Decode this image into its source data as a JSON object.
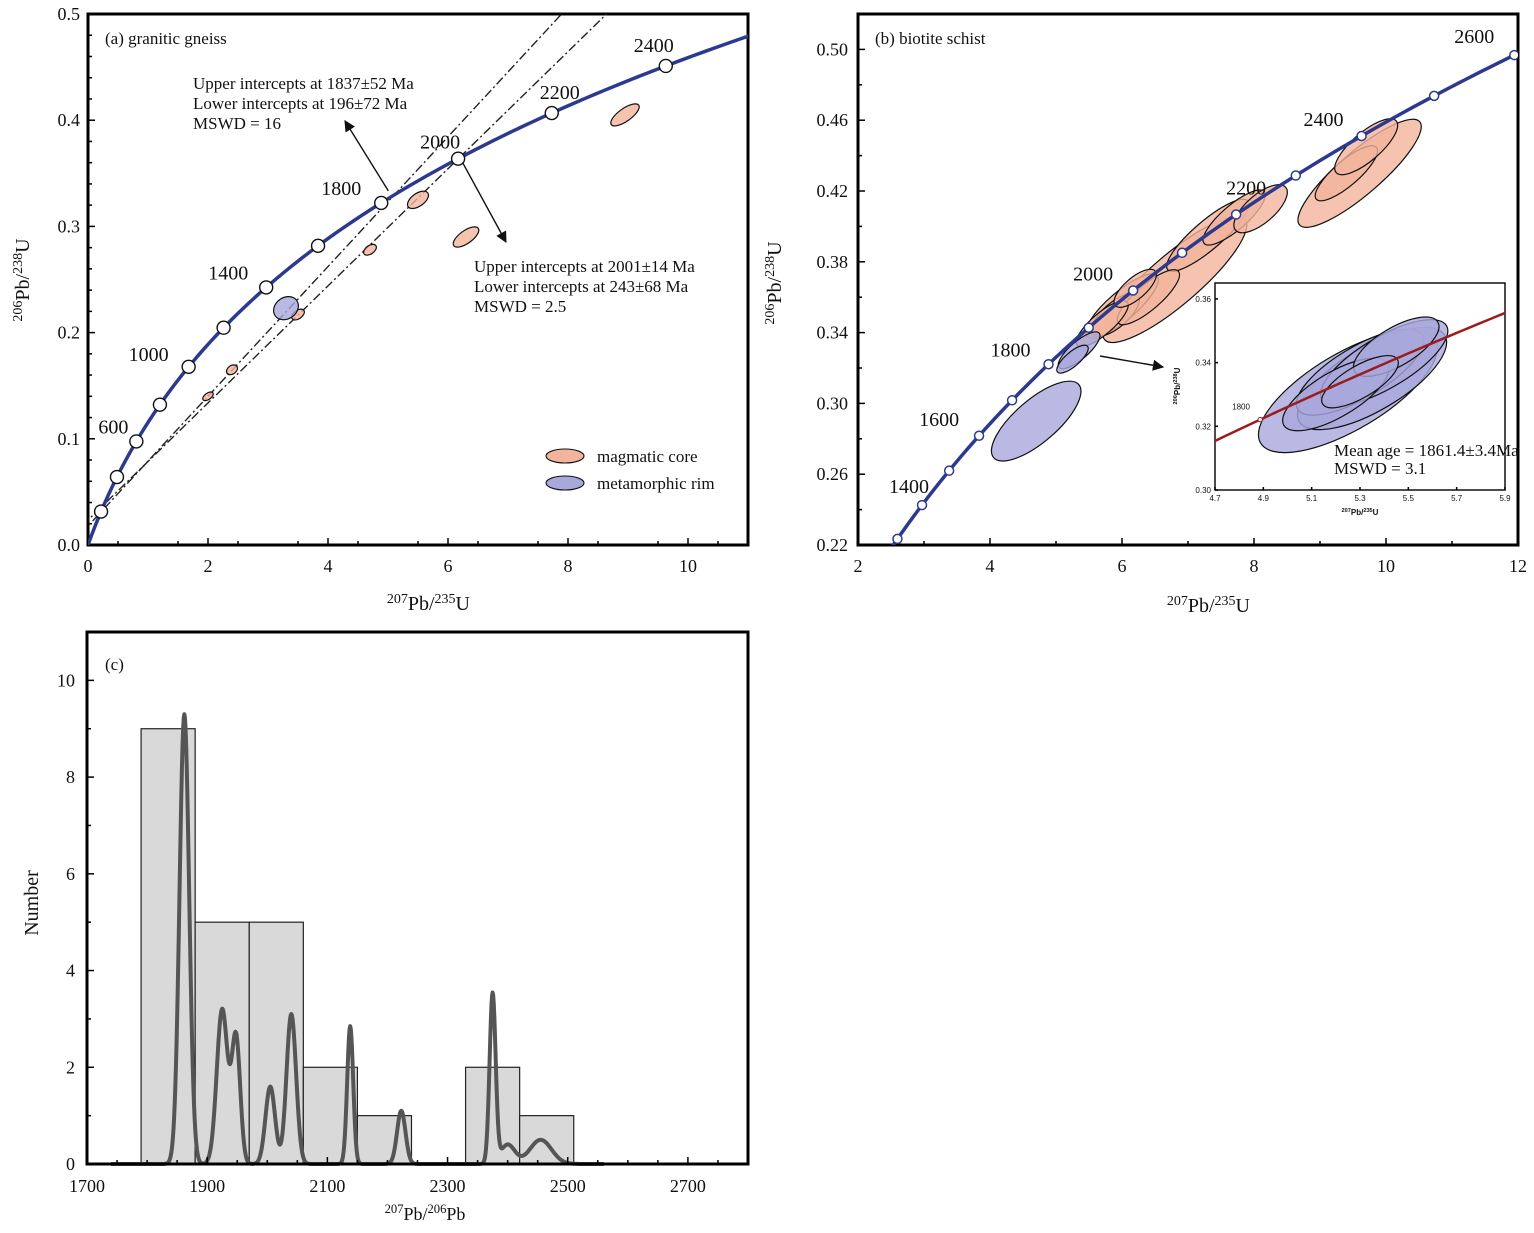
{
  "colors": {
    "concordia": "#2b3a8f",
    "core_fill": "#f2b49c",
    "rim_fill": "#a8a8dc",
    "inset_curve": "#9b1c1c",
    "hist_fill": "#d9d9d9",
    "kde": "#555555"
  },
  "chart_data": [
    {
      "id": "a",
      "type": "scatter",
      "title": "(a) granitic gneiss",
      "xlabel": {
        "sup1": "207",
        "main1": "Pb/",
        "sup2": "235",
        "main2": "U"
      },
      "ylabel": {
        "sup1": "206",
        "main1": "Pb/",
        "sup2": "238",
        "main2": "U"
      },
      "xlim": [
        0,
        11
      ],
      "ylim": [
        0,
        0.5
      ],
      "xticks": [
        0,
        2,
        4,
        6,
        8,
        10
      ],
      "xtick_labels": [
        "0",
        "2",
        "4",
        "6",
        "8",
        "10"
      ],
      "yticks": [
        0,
        0.1,
        0.2,
        0.3,
        0.4,
        0.5
      ],
      "ytick_labels": [
        "0.0",
        "0.1",
        "0.2",
        "0.3",
        "0.4",
        "0.5"
      ],
      "concordia_ages": [
        200,
        400,
        600,
        800,
        1000,
        1200,
        1400,
        1600,
        1800,
        2000,
        2200,
        2400
      ],
      "concordia_labels": [
        {
          "age": 600,
          "text": "600"
        },
        {
          "age": 1000,
          "text": "1000"
        },
        {
          "age": 1400,
          "text": "1400"
        },
        {
          "age": 1800,
          "text": "1800"
        },
        {
          "age": 2000,
          "text": "2000"
        },
        {
          "age": 2200,
          "text": "2200"
        },
        {
          "age": 2400,
          "text": "2400"
        }
      ],
      "discordia": [
        {
          "upper_ma": 1837,
          "lower_ma": 196
        },
        {
          "upper_ma": 2001,
          "lower_ma": 243
        }
      ],
      "annotations": [
        {
          "lines": [
            "Upper intercepts at 1837±52 Ma",
            "Lower intercepts at 196±72 Ma",
            "MSWD = 16"
          ]
        },
        {
          "lines": [
            "Upper intercepts at 2001±14 Ma",
            "Lower intercepts at 243±68 Ma",
            "MSWD = 2.5"
          ]
        }
      ],
      "ellipses_core": [
        {
          "x": 8.95,
          "y": 0.405,
          "rx": 0.28,
          "ry": 0.006
        },
        {
          "x": 6.3,
          "y": 0.29,
          "rx": 0.25,
          "ry": 0.006
        },
        {
          "x": 5.5,
          "y": 0.325,
          "rx": 0.2,
          "ry": 0.006
        },
        {
          "x": 4.7,
          "y": 0.278,
          "rx": 0.12,
          "ry": 0.004
        },
        {
          "x": 3.5,
          "y": 0.217,
          "rx": 0.12,
          "ry": 0.004
        },
        {
          "x": 2.4,
          "y": 0.165,
          "rx": 0.1,
          "ry": 0.004
        },
        {
          "x": 2.0,
          "y": 0.14,
          "rx": 0.1,
          "ry": 0.003
        }
      ],
      "ellipses_rim": [
        {
          "x": 3.3,
          "y": 0.223,
          "rx": 0.22,
          "ry": 0.01
        }
      ],
      "legend": [
        {
          "label": "magmatic core",
          "kind": "core"
        },
        {
          "label": "metamorphic rim",
          "kind": "rim"
        }
      ]
    },
    {
      "id": "b",
      "type": "scatter",
      "title": "(b) biotite schist",
      "xlabel": {
        "sup1": "207",
        "main1": "Pb/",
        "sup2": "235",
        "main2": "U"
      },
      "ylabel": {
        "sup1": "206",
        "main1": "Pb/",
        "sup2": "238",
        "main2": "U"
      },
      "xlim": [
        2,
        12
      ],
      "ylim": [
        0.22,
        0.52
      ],
      "xticks": [
        2,
        4,
        6,
        8,
        10,
        12
      ],
      "xtick_labels": [
        "2",
        "4",
        "6",
        "8",
        "10",
        "12"
      ],
      "yticks": [
        0.22,
        0.26,
        0.3,
        0.34,
        0.38,
        0.42,
        0.46,
        0.5
      ],
      "ytick_labels": [
        "0.22",
        "0.26",
        "0.30",
        "0.34",
        "0.38",
        "0.42",
        "0.46",
        "0.50"
      ],
      "concordia_ages": [
        1300,
        1400,
        1500,
        1600,
        1700,
        1800,
        1900,
        2000,
        2100,
        2200,
        2300,
        2400,
        2500,
        2600
      ],
      "concordia_labels": [
        {
          "age": 1400,
          "text": "1400"
        },
        {
          "age": 1600,
          "text": "1600"
        },
        {
          "age": 1800,
          "text": "1800"
        },
        {
          "age": 2000,
          "text": "2000"
        },
        {
          "age": 2200,
          "text": "2200"
        },
        {
          "age": 2400,
          "text": "2400"
        },
        {
          "age": 2600,
          "text": "2600"
        }
      ],
      "ellipses_core": [
        {
          "x": 9.6,
          "y": 0.43,
          "rx": 1.2,
          "ry": 0.012
        },
        {
          "x": 9.4,
          "y": 0.43,
          "rx": 0.6,
          "ry": 0.007
        },
        {
          "x": 9.7,
          "y": 0.445,
          "rx": 0.6,
          "ry": 0.008
        },
        {
          "x": 6.8,
          "y": 0.37,
          "rx": 1.4,
          "ry": 0.014
        },
        {
          "x": 7.3,
          "y": 0.395,
          "rx": 0.8,
          "ry": 0.008
        },
        {
          "x": 7.7,
          "y": 0.405,
          "rx": 0.6,
          "ry": 0.007
        },
        {
          "x": 8.1,
          "y": 0.41,
          "rx": 0.5,
          "ry": 0.008
        },
        {
          "x": 6.0,
          "y": 0.355,
          "rx": 0.7,
          "ry": 0.008
        },
        {
          "x": 5.9,
          "y": 0.35,
          "rx": 0.45,
          "ry": 0.007
        },
        {
          "x": 6.4,
          "y": 0.36,
          "rx": 0.6,
          "ry": 0.007
        },
        {
          "x": 5.7,
          "y": 0.345,
          "rx": 0.5,
          "ry": 0.006
        },
        {
          "x": 6.2,
          "y": 0.365,
          "rx": 0.4,
          "ry": 0.006
        }
      ],
      "ellipses_rim": [
        {
          "x": 4.7,
          "y": 0.29,
          "rx": 0.85,
          "ry": 0.012
        },
        {
          "x": 5.35,
          "y": 0.33,
          "rx": 0.4,
          "ry": 0.005
        },
        {
          "x": 5.25,
          "y": 0.325,
          "rx": 0.3,
          "ry": 0.004
        }
      ],
      "inset": {
        "xlabel": {
          "sup1": "207",
          "main1": "Pb/",
          "sup2": "235",
          "main2": "U"
        },
        "ylabel": {
          "sup1": "206",
          "main1": "Pb/",
          "sup2": "238",
          "main2": "U"
        },
        "xlim": [
          4.7,
          5.9
        ],
        "ylim": [
          0.3,
          0.365
        ],
        "xticks": [
          4.7,
          4.9,
          5.1,
          5.3,
          5.5,
          5.7,
          5.9
        ],
        "xtick_labels": [
          "4.7",
          "4.9",
          "5.1",
          "5.3",
          "5.5",
          "5.7",
          "5.9"
        ],
        "yticks": [
          0.3,
          0.32,
          0.34,
          0.36
        ],
        "ytick_labels": [
          "0.30",
          "0.32",
          "0.34",
          "0.36"
        ],
        "concordia_label": "1800",
        "mean_age": "Mean age = 1861.4±3.4Ma",
        "mswd": "MSWD = 3.1",
        "ellipses_rim": [
          {
            "x": 5.25,
            "y": 0.331,
            "rx": 0.42,
            "ry": 0.012
          },
          {
            "x": 5.35,
            "y": 0.335,
            "rx": 0.35,
            "ry": 0.01
          },
          {
            "x": 5.3,
            "y": 0.337,
            "rx": 0.3,
            "ry": 0.008
          },
          {
            "x": 5.4,
            "y": 0.34,
            "rx": 0.3,
            "ry": 0.008
          },
          {
            "x": 5.2,
            "y": 0.33,
            "rx": 0.25,
            "ry": 0.007
          },
          {
            "x": 5.45,
            "y": 0.345,
            "rx": 0.2,
            "ry": 0.006
          },
          {
            "x": 5.3,
            "y": 0.334,
            "rx": 0.18,
            "ry": 0.005
          }
        ]
      }
    },
    {
      "id": "c",
      "type": "bar",
      "title": "(c)",
      "xlabel": {
        "sup1": "207",
        "main1": "Pb/",
        "sup2": "206",
        "main2": "Pb"
      },
      "ylabel": "Number",
      "xlim": [
        1700,
        2800
      ],
      "ylim": [
        0,
        11
      ],
      "xticks": [
        1700,
        1900,
        2100,
        2300,
        2500,
        2700
      ],
      "xtick_labels": [
        "1700",
        "1900",
        "2100",
        "2300",
        "2500",
        "2700"
      ],
      "yticks": [
        0,
        2,
        4,
        6,
        8,
        10
      ],
      "ytick_labels": [
        "0",
        "2",
        "4",
        "6",
        "8",
        "10"
      ],
      "bins": [
        {
          "from": 1790,
          "to": 1880,
          "count": 9
        },
        {
          "from": 1880,
          "to": 1970,
          "count": 5
        },
        {
          "from": 1970,
          "to": 2060,
          "count": 5
        },
        {
          "from": 2060,
          "to": 2150,
          "count": 2
        },
        {
          "from": 2150,
          "to": 2240,
          "count": 1
        },
        {
          "from": 2330,
          "to": 2420,
          "count": 2
        },
        {
          "from": 2420,
          "to": 2510,
          "count": 1
        }
      ],
      "kde_peaks": [
        {
          "mu": 1862,
          "sigma": 8,
          "h": 9.3
        },
        {
          "mu": 1925,
          "sigma": 9,
          "h": 3.2
        },
        {
          "mu": 1948,
          "sigma": 7,
          "h": 2.6
        },
        {
          "mu": 2005,
          "sigma": 8,
          "h": 1.6
        },
        {
          "mu": 2040,
          "sigma": 8,
          "h": 3.1
        },
        {
          "mu": 2138,
          "sigma": 5,
          "h": 2.85
        },
        {
          "mu": 2223,
          "sigma": 7,
          "h": 1.1
        },
        {
          "mu": 2375,
          "sigma": 5,
          "h": 3.5
        },
        {
          "mu": 2400,
          "sigma": 12,
          "h": 0.4
        },
        {
          "mu": 2455,
          "sigma": 18,
          "h": 0.5
        }
      ]
    }
  ]
}
